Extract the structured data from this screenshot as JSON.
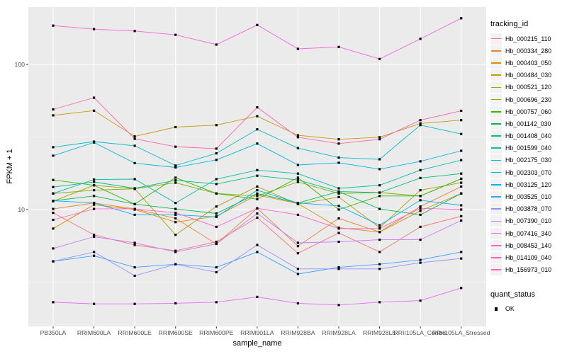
{
  "style": {
    "panel_bg": "#EBEBEB",
    "grid_color": "#FFFFFF",
    "marker_color": "#000000",
    "tick_label_color": "#4D4D4D",
    "axis_title_color": "#000000",
    "legend_key_bg": "#F2F2F2",
    "tick_mark_color": "#333333"
  },
  "chart_data": {
    "type": "line",
    "title": "",
    "xlabel": "sample_name",
    "ylabel": "FPKM + 1",
    "y_scale": "log10",
    "y_ticks": [
      {
        "label": "10",
        "value": 10
      },
      {
        "label": "100",
        "value": 100
      }
    ],
    "y_minor_gridlines": [
      3.1623,
      31.623
    ],
    "ylim_log": [
      1.57,
      248
    ],
    "grid": true,
    "marker_shape": "filled-square",
    "categories": [
      "PB350LA",
      "RRIM600LA",
      "RRIM600LE",
      "RRIM600SE",
      "RRIM600PE",
      "RRIM901LA",
      "RRIM928BA",
      "RRIM928LA",
      "RRIM928LE",
      "RRII105LA_Control",
      "RRII105LA_Stressed"
    ],
    "legend": {
      "title": "tracking_id",
      "position": "right"
    },
    "legend2": {
      "title": "quant_status",
      "entries": [
        {
          "label": "OK",
          "marker": "filled-square"
        }
      ]
    },
    "series": [
      {
        "name": "Hb_000215_110",
        "color": "#F8766D",
        "values": [
          9.5,
          6.7,
          5.7,
          5.2,
          6.0,
          8.8,
          5.0,
          6.9,
          5.1,
          7.6,
          9.0
        ]
      },
      {
        "name": "Hb_000334_280",
        "color": "#EA8331",
        "values": [
          10.1,
          11.1,
          10.1,
          8.7,
          5.8,
          10.2,
          5.6,
          8.7,
          7.0,
          10.5,
          14.4
        ]
      },
      {
        "name": "Hb_000403_050",
        "color": "#D89000",
        "values": [
          7.4,
          10.8,
          10.0,
          8.2,
          9.0,
          12.6,
          11.0,
          7.5,
          7.0,
          9.8,
          12.9
        ]
      },
      {
        "name": "Hb_000484_030",
        "color": "#C09B00",
        "values": [
          44.6,
          48.0,
          31.9,
          37.0,
          38.2,
          44.0,
          32.5,
          30.5,
          31.5,
          39.2,
          41.3
        ]
      },
      {
        "name": "Hb_000521_120",
        "color": "#A3A500",
        "values": [
          11.4,
          14.7,
          13.9,
          6.7,
          10.5,
          14.4,
          10.9,
          12.2,
          7.5,
          13.6,
          15.3
        ]
      },
      {
        "name": "Hb_000696_230",
        "color": "#7CAE00",
        "values": [
          12.9,
          13.6,
          13.9,
          15.3,
          12.9,
          12.4,
          15.5,
          12.9,
          13.1,
          12.4,
          16.3
        ]
      },
      {
        "name": "Hb_000757_060",
        "color": "#39B600",
        "values": [
          16.0,
          14.7,
          10.9,
          16.6,
          12.9,
          11.8,
          16.6,
          10.0,
          12.4,
          12.4,
          16.3
        ]
      },
      {
        "name": "Hb_001142_030",
        "color": "#00BB4E",
        "values": [
          11.5,
          12.4,
          10.9,
          10.1,
          9.4,
          12.9,
          11.1,
          13.3,
          10.1,
          9.2,
          12.9
        ]
      },
      {
        "name": "Hb_001408_040",
        "color": "#00BF7D",
        "values": [
          14.3,
          15.5,
          14.0,
          15.9,
          15.0,
          17.1,
          16.0,
          13.3,
          13.1,
          16.5,
          17.7
        ]
      },
      {
        "name": "Hb_001599_040",
        "color": "#00C1A3",
        "values": [
          12.9,
          16.1,
          16.2,
          11.1,
          16.2,
          18.7,
          17.7,
          14.0,
          14.7,
          18.7,
          21.9
        ]
      },
      {
        "name": "Hb_002175_030",
        "color": "#00BFC4",
        "values": [
          26.9,
          29.4,
          27.5,
          20.1,
          24.4,
          35.7,
          26.5,
          22.8,
          22.2,
          38.2,
          33.2
        ]
      },
      {
        "name": "Hb_002303_070",
        "color": "#00BAE0",
        "values": [
          23.5,
          29.0,
          20.9,
          19.5,
          22.0,
          28.5,
          20.3,
          21.0,
          19.0,
          21.5,
          25.4
        ]
      },
      {
        "name": "Hb_003125_120",
        "color": "#00B0F6",
        "values": [
          11.5,
          11.1,
          9.2,
          9.2,
          8.9,
          13.6,
          11.1,
          10.6,
          7.8,
          11.6,
          10.7
        ]
      },
      {
        "name": "Hb_003525_010",
        "color": "#35A2FF",
        "values": [
          4.4,
          4.8,
          4.0,
          4.2,
          4.0,
          5.1,
          3.6,
          4.0,
          4.2,
          4.5,
          5.1
        ]
      },
      {
        "name": "Hb_003878_070",
        "color": "#9590FF",
        "values": [
          4.4,
          5.1,
          3.5,
          4.2,
          3.7,
          5.7,
          3.9,
          3.9,
          3.9,
          4.3,
          4.6
        ]
      },
      {
        "name": "Hb_007390_010",
        "color": "#C77CFF",
        "values": [
          5.4,
          6.5,
          5.9,
          5.1,
          5.8,
          9.4,
          5.9,
          6.0,
          6.2,
          6.2,
          8.4
        ]
      },
      {
        "name": "Hb_007416_340",
        "color": "#E76BF3",
        "values": [
          2.3,
          2.24,
          2.24,
          2.26,
          2.3,
          2.5,
          2.26,
          2.2,
          2.3,
          2.36,
          2.88
        ]
      },
      {
        "name": "Hb_008453_140",
        "color": "#FA62DB",
        "values": [
          185,
          175,
          170,
          160,
          137,
          187,
          128,
          132,
          109,
          150,
          208
        ]
      },
      {
        "name": "Hb_014109_040",
        "color": "#FF61C9",
        "values": [
          8.5,
          10.1,
          10.1,
          9.5,
          7.6,
          10.2,
          9.2,
          7.4,
          7.4,
          10.2,
          10.0
        ]
      },
      {
        "name": "Hb_156973_010",
        "color": "#FF65AE",
        "values": [
          49.0,
          59.0,
          30.7,
          27.1,
          26.3,
          50.6,
          31.5,
          28.5,
          30.5,
          41.3,
          47.9
        ]
      }
    ]
  }
}
